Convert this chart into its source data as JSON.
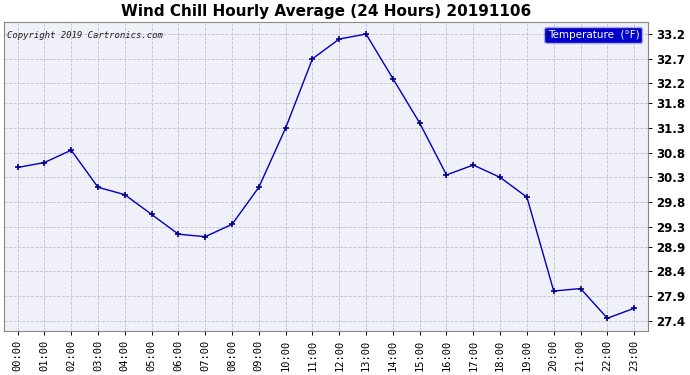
{
  "title": "Wind Chill Hourly Average (24 Hours) 20191106",
  "copyright": "Copyright 2019 Cartronics.com",
  "legend_label": "Temperature  (°F)",
  "hours": [
    "00:00",
    "01:00",
    "02:00",
    "03:00",
    "04:00",
    "05:00",
    "06:00",
    "07:00",
    "08:00",
    "09:00",
    "10:00",
    "11:00",
    "12:00",
    "13:00",
    "14:00",
    "15:00",
    "16:00",
    "17:00",
    "18:00",
    "19:00",
    "20:00",
    "21:00",
    "22:00",
    "23:00"
  ],
  "values": [
    30.5,
    30.6,
    30.85,
    30.1,
    29.95,
    29.55,
    29.15,
    29.1,
    29.35,
    30.1,
    31.3,
    32.7,
    33.1,
    33.2,
    32.3,
    31.4,
    30.35,
    30.55,
    30.3,
    29.9,
    28.0,
    28.05,
    27.45,
    27.65
  ],
  "line_color": "#0000bb",
  "marker_color": "#000088",
  "bg_color": "#ffffff",
  "plot_bg_color": "#f0f0f8",
  "grid_color": "#bbbbcc",
  "ylim": [
    27.2,
    33.45
  ],
  "yticks": [
    27.4,
    27.9,
    28.4,
    28.9,
    29.3,
    29.8,
    30.3,
    30.8,
    31.3,
    31.8,
    32.2,
    32.7,
    33.2
  ],
  "title_fontsize": 11,
  "axis_fontsize": 7.5,
  "legend_bg": "#0000cc",
  "legend_text_color": "#ffffff"
}
